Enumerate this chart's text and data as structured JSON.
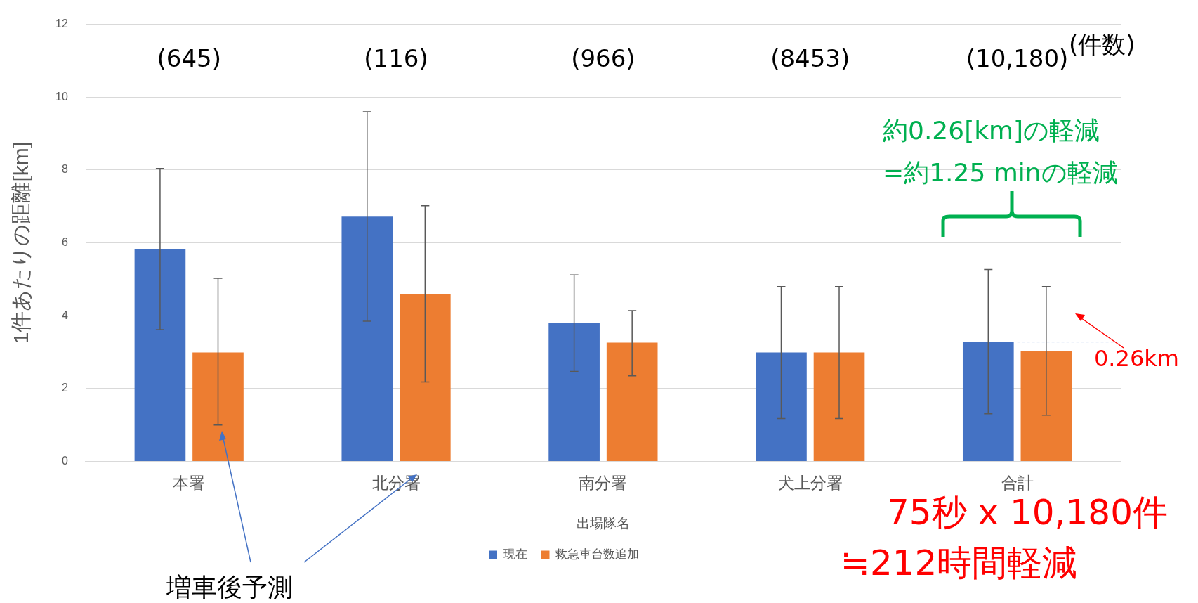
{
  "chart_data": {
    "type": "bar",
    "xlabel": "出場隊名",
    "ylabel": "1件あたりの距離[km]",
    "categories": [
      "本署",
      "北分署",
      "南分署",
      "犬上分署",
      "合計"
    ],
    "series": [
      {
        "name": "現在",
        "color": "#4472c4",
        "values": [
          5.84,
          6.72,
          3.8,
          2.99,
          3.28
        ],
        "errors": [
          [
            3.62,
            8.04
          ],
          [
            3.85,
            9.6
          ],
          [
            2.47,
            5.12
          ],
          [
            1.18,
            4.8
          ],
          [
            1.31,
            5.27
          ]
        ]
      },
      {
        "name": "救急車台数追加",
        "color": "#ed7d31",
        "values": [
          2.99,
          4.6,
          3.26,
          2.99,
          3.03
        ],
        "errors": [
          [
            1.0,
            5.03
          ],
          [
            2.18,
            7.02
          ],
          [
            2.35,
            4.14
          ],
          [
            1.18,
            4.8
          ],
          [
            1.27,
            4.8
          ]
        ]
      }
    ],
    "ylim": [
      0,
      12
    ],
    "yticks": [
      0,
      2,
      4,
      6,
      8,
      10,
      12
    ],
    "grid": "y",
    "legend": "bottom",
    "ref_lines": [
      {
        "axis": "y",
        "value": 3.28,
        "color": "#4472c4",
        "line_style": "dashed"
      }
    ],
    "annotations": [
      "(645)",
      "(116)",
      "(966)",
      "(8453)",
      "(10,180)",
      "(件数)",
      "約0.26[km]の軽減",
      "=約1.25 minの軽減",
      "0.26km",
      "75秒 x 10,180件",
      "≒212時間軽減",
      "増車後予測"
    ]
  }
}
